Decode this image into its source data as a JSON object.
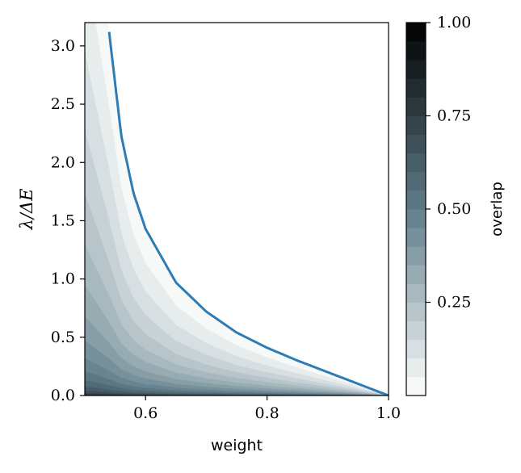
{
  "chart_data": {
    "type": "heatmap",
    "subtype": "filled-contour",
    "title": "",
    "xlabel": "weight",
    "ylabel": "λ/ΔE",
    "xlim": [
      0.5,
      1.0
    ],
    "ylim": [
      0.0,
      3.2
    ],
    "x_ticks": [
      0.6,
      0.8,
      1.0
    ],
    "x_tick_labels": [
      "0.6",
      "0.8",
      "1.0"
    ],
    "y_ticks": [
      0.0,
      0.5,
      1.0,
      1.5,
      2.0,
      2.5,
      3.0
    ],
    "y_tick_labels": [
      "0.0",
      "0.5",
      "1.0",
      "1.5",
      "2.0",
      "2.5",
      "3.0"
    ],
    "grid": false,
    "boundary_curve": {
      "color": "#2e7cb5",
      "x": [
        0.54,
        0.56,
        0.58,
        0.6,
        0.65,
        0.7,
        0.75,
        0.8,
        0.85,
        0.9,
        0.95,
        1.0
      ],
      "y": [
        3.12,
        2.23,
        1.74,
        1.43,
        0.97,
        0.72,
        0.54,
        0.41,
        0.3,
        0.2,
        0.1,
        0.0
      ]
    },
    "colorbar": {
      "label": "overlap",
      "min": 0.0,
      "max": 1.0,
      "levels": 20,
      "ticks": [
        0.25,
        0.5,
        0.75,
        1.0
      ],
      "tick_labels": [
        "0.25",
        "0.50",
        "0.75",
        "1.00"
      ],
      "colormap": "bone_r",
      "color_low": "#ffffff",
      "color_mid": "#5f7d8a",
      "color_high": "#000000"
    }
  }
}
